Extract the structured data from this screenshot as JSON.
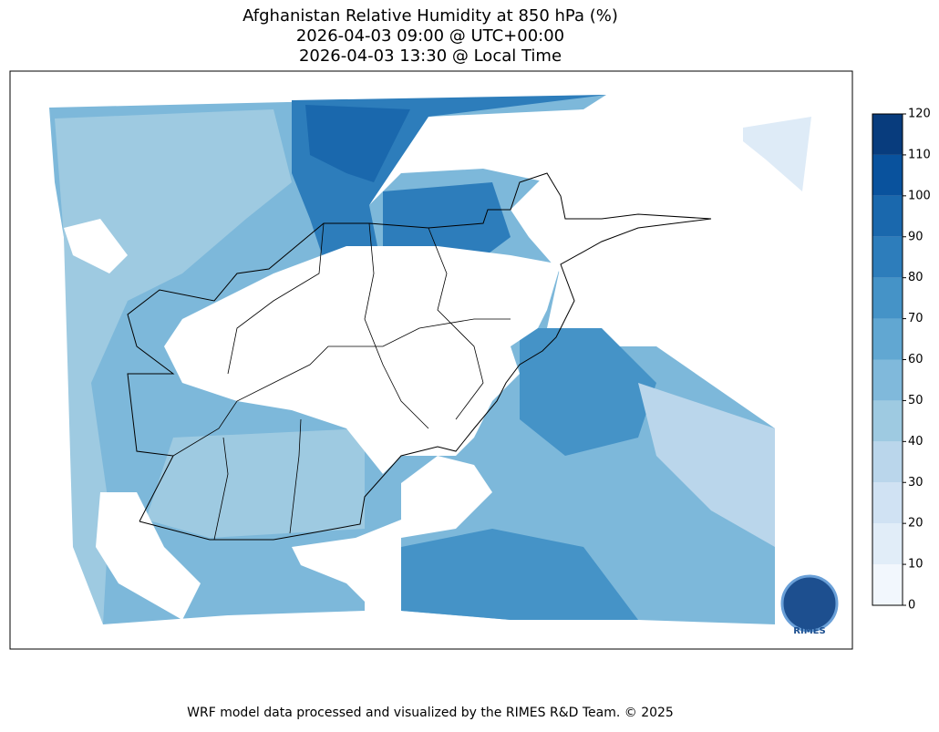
{
  "title": [
    "Afghanistan Relative Humidity at 850 hPa (%)",
    "2026-04-03 09:00 @ UTC+00:00",
    "2026-04-03 13:30 @ Local Time"
  ],
  "colorbar": {
    "ticks": [
      0,
      10,
      20,
      30,
      40,
      50,
      60,
      70,
      80,
      90,
      100,
      110,
      120
    ],
    "colors": [
      "#f2f7fd",
      "#e1edf8",
      "#d0e2f3",
      "#bad6eb",
      "#9ecae1",
      "#80b9db",
      "#61a7d2",
      "#4593c7",
      "#2d7dbb",
      "#1a68ad",
      "#09529d",
      "#083c7d"
    ]
  },
  "logo": "RIMES",
  "footer": "WRF model data processed and visualized by the RIMES R&D Team. © 2025"
}
